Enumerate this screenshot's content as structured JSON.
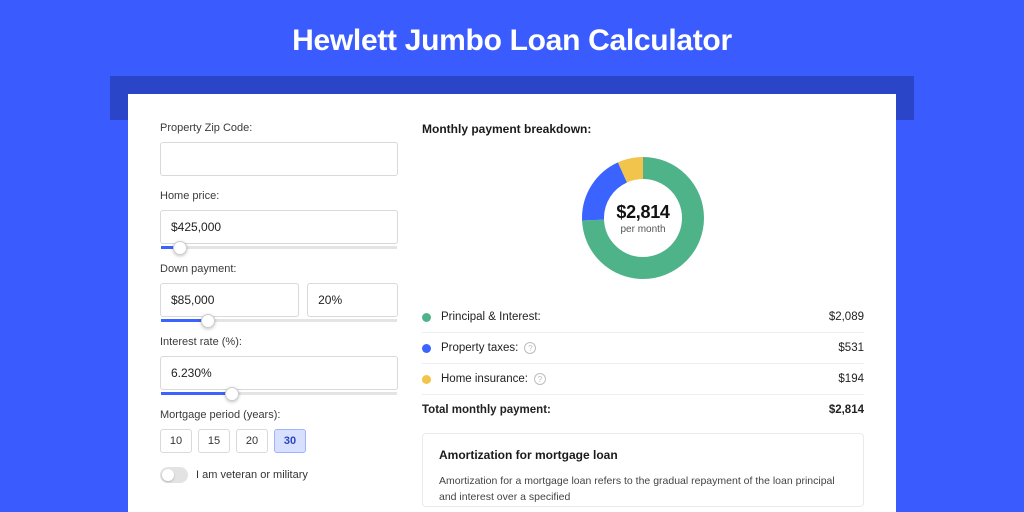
{
  "page": {
    "title": "Hewlett Jumbo Loan Calculator"
  },
  "colors": {
    "page_bg": "#3a5cff",
    "shadow_bar": "#2b45c9",
    "card_bg": "#ffffff",
    "slider_fill": "#3a63ff"
  },
  "form": {
    "zip_label": "Property Zip Code:",
    "zip_value": "",
    "home_price_label": "Home price:",
    "home_price_value": "$425,000",
    "home_price_slider_pct": 8,
    "down_payment_label": "Down payment:",
    "down_payment_value": "$85,000",
    "down_payment_pct": "20%",
    "down_payment_slider_pct": 20,
    "interest_label": "Interest rate (%):",
    "interest_value": "6.230%",
    "interest_slider_pct": 30,
    "period_label": "Mortgage period (years):",
    "period_options": [
      "10",
      "15",
      "20",
      "30"
    ],
    "period_selected": "30",
    "veteran_label": "I am veteran or military",
    "veteran_on": false
  },
  "breakdown": {
    "title": "Monthly payment breakdown:",
    "center_value": "$2,814",
    "center_sub": "per month",
    "donut": {
      "radius": 50,
      "stroke": 22,
      "segments": [
        {
          "key": "principal_interest",
          "color": "#4fb38a",
          "fraction": 0.742
        },
        {
          "key": "property_taxes",
          "color": "#3a63ff",
          "fraction": 0.189
        },
        {
          "key": "home_insurance",
          "color": "#f3c44b",
          "fraction": 0.069
        }
      ]
    },
    "items": [
      {
        "label": "Principal & Interest:",
        "value": "$2,089",
        "color": "#4fb38a",
        "help": false
      },
      {
        "label": "Property taxes:",
        "value": "$531",
        "color": "#3a63ff",
        "help": true
      },
      {
        "label": "Home insurance:",
        "value": "$194",
        "color": "#f3c44b",
        "help": true
      }
    ],
    "total_label": "Total monthly payment:",
    "total_value": "$2,814"
  },
  "amortization": {
    "title": "Amortization for mortgage loan",
    "body": "Amortization for a mortgage loan refers to the gradual repayment of the loan principal and interest over a specified"
  }
}
